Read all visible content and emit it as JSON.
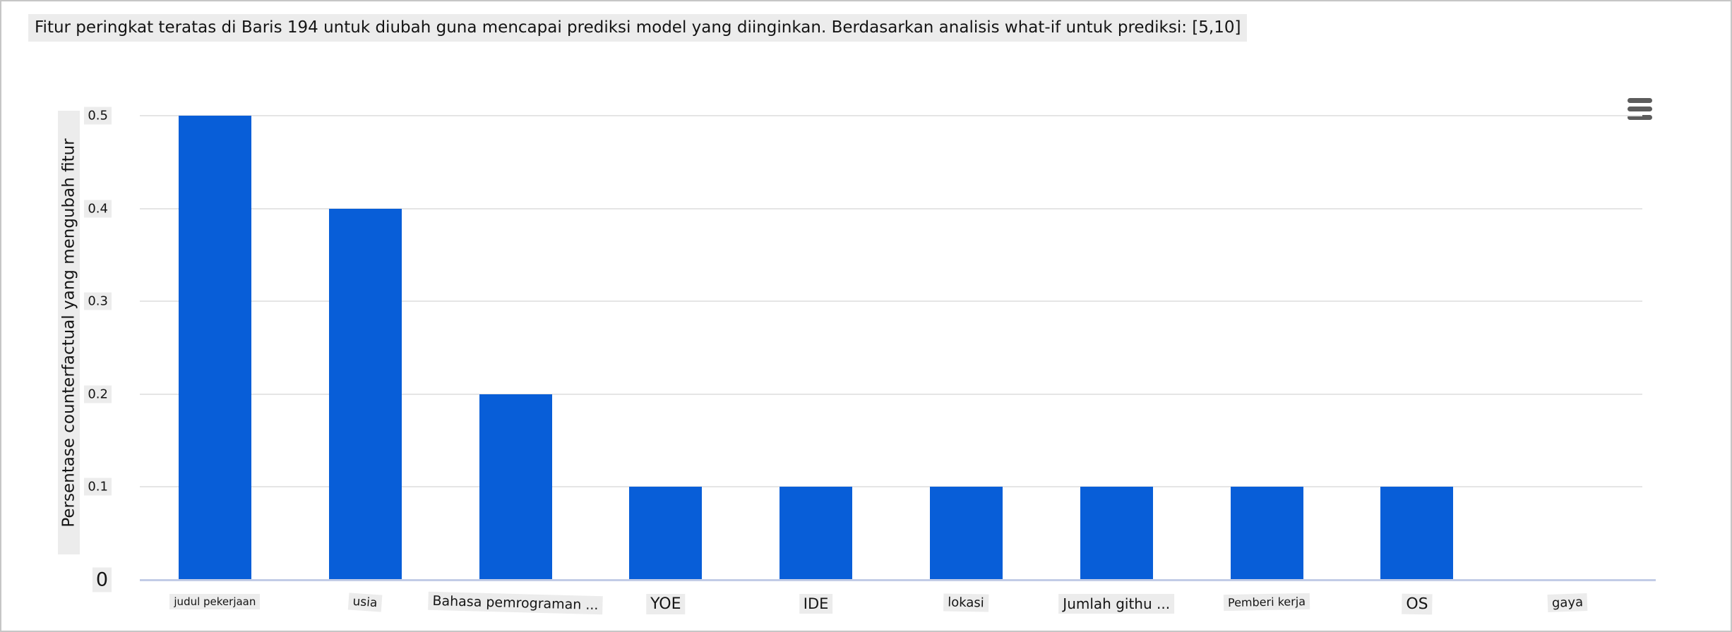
{
  "header": {
    "title": "Fitur peringkat teratas di Baris 194 untuk diubah guna mencapai prediksi model yang diinginkan. Berdasarkan analisis what-if untuk prediksi: [5,10]"
  },
  "toolbar": {
    "menu_icon": "hamburger-menu-icon"
  },
  "chart_data": {
    "type": "bar",
    "title": "Fitur peringkat teratas di Baris 194 untuk diubah guna mencapai prediksi model yang diinginkan. Berdasarkan analisis what-if untuk prediksi: [5,10]",
    "categories": [
      "judul pekerjaan",
      "usia",
      "Bahasa pemrograman ...",
      "YOE",
      "IDE",
      "lokasi",
      "Jumlah githu ...",
      "Pemberi kerja",
      "OS",
      "gaya"
    ],
    "values": [
      0.5,
      0.4,
      0.2,
      0.1,
      0.1,
      0.1,
      0.1,
      0.1,
      0.1,
      0
    ],
    "xlabel": "",
    "ylabel": "Persentase counterfactual yang mengubah fitur",
    "yticks": [
      0,
      0.1,
      0.2,
      0.3,
      0.4,
      0.5
    ],
    "ylim": [
      0,
      0.5
    ],
    "grid": true,
    "legend": false,
    "bar_color": "#085ed8"
  },
  "colors": {
    "bar": "#085ed8",
    "gridline": "#e5e5e5",
    "baseline": "#c2cce6",
    "label_background": "#ececec",
    "text": "#141414",
    "menu_icon": "#5c5c5c"
  }
}
